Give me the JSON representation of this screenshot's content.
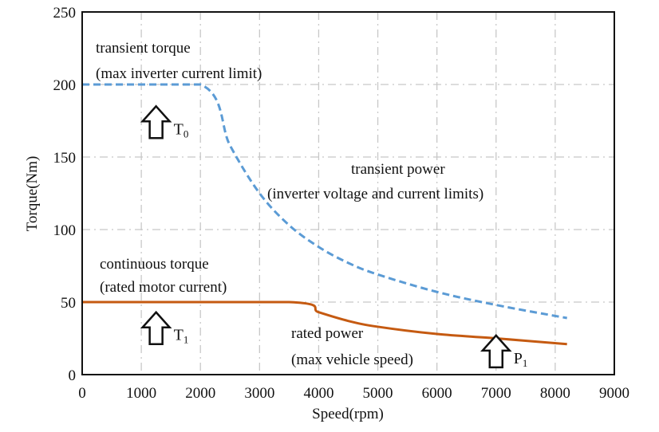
{
  "chart_data": {
    "type": "line",
    "title": "",
    "xlabel": "Speed(rpm)",
    "ylabel": "Torque(Nm)",
    "xlim": [
      0,
      9000
    ],
    "ylim": [
      0,
      250
    ],
    "xticks": [
      0,
      1000,
      2000,
      3000,
      4000,
      5000,
      6000,
      7000,
      8000,
      9000
    ],
    "yticks": [
      0,
      50,
      100,
      150,
      200,
      250
    ],
    "grid": true,
    "series": [
      {
        "name": "transient",
        "style": "dashed",
        "color": "#5b9bd5",
        "x": [
          0,
          2000,
          2500,
          3000,
          3500,
          4000,
          4500,
          5000,
          6000,
          7000,
          8200
        ],
        "y": [
          200,
          200,
          158,
          125,
          103,
          88,
          77,
          69,
          57,
          48,
          39
        ]
      },
      {
        "name": "rated",
        "style": "solid",
        "color": "#c55a11",
        "x": [
          0,
          3500,
          4000,
          4500,
          5000,
          6000,
          7000,
          8200
        ],
        "y": [
          50,
          50,
          43,
          37,
          33,
          28,
          25,
          21
        ]
      }
    ],
    "annotations": [
      {
        "line1": "transient torque",
        "line2": "(max inverter current limit)"
      },
      {
        "line1": "transient power",
        "line2": "(inverter voltage and current limits)"
      },
      {
        "line1": "continuous torque",
        "line2": "(rated motor current)"
      },
      {
        "line1": "rated power",
        "line2": "(max vehicle speed)"
      }
    ],
    "markers": [
      {
        "label": "T",
        "sub": "0"
      },
      {
        "label": "T",
        "sub": "1"
      },
      {
        "label": "P",
        "sub": "1"
      }
    ]
  }
}
